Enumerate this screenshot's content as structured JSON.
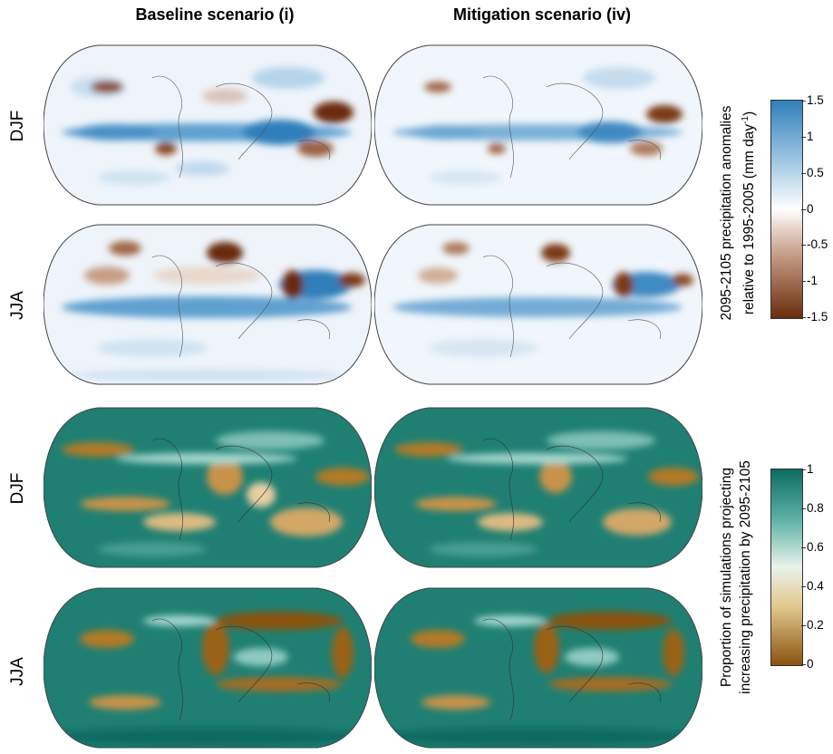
{
  "columns": {
    "left": "Baseline scenario (i)",
    "right": "Mitigation scenario (iv)"
  },
  "rows": {
    "r1": "DJF",
    "r2": "JJA",
    "r3": "DJF",
    "r4": "JJA"
  },
  "colorbar_top": {
    "title_line1": "2095-2105 precipitation anomalies",
    "title_line2": "relative to 1995-2005 (mm day",
    "title_sup": "-1",
    "title_close": ")",
    "ticks": [
      "1.5",
      "1",
      "0.5",
      "0",
      "-0.5",
      "-1",
      "-1.5"
    ],
    "colors": [
      "#2f7fba",
      "#ffffff",
      "#6b2c0c"
    ]
  },
  "colorbar_bottom": {
    "title_line1": "Proportion of simulations projecting",
    "title_line2": "increasing precipitation by 2095-2105",
    "ticks": [
      "1",
      "0.8",
      "0.6",
      "0.4",
      "0.2",
      "0"
    ],
    "colors": [
      "#0d6b60",
      "#f5f1df",
      "#8a520f"
    ]
  }
}
